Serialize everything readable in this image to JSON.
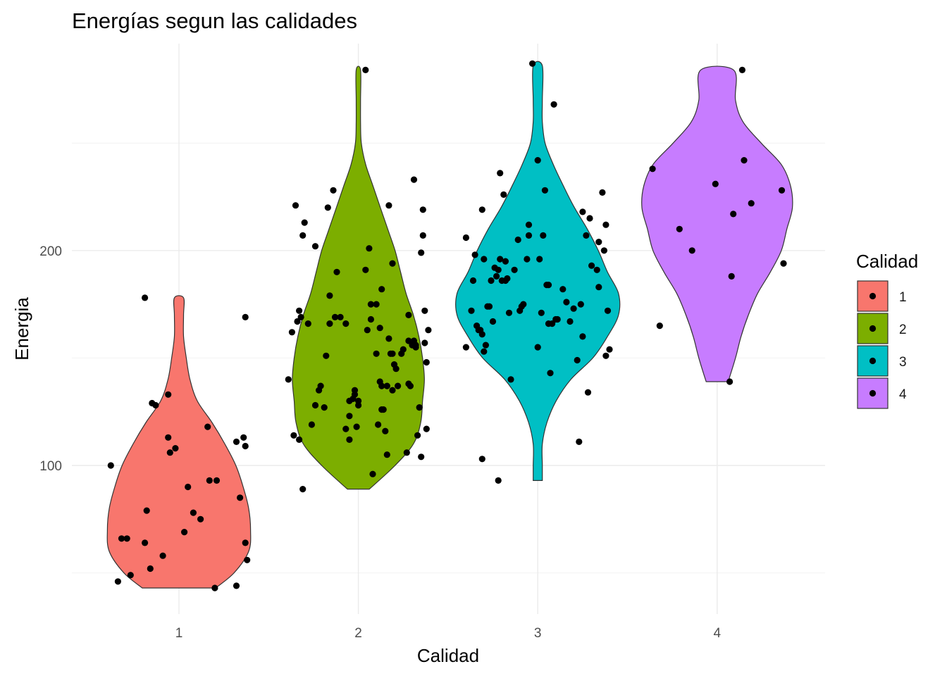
{
  "chart_data": {
    "type": "violin",
    "title": "Energías segun las calidades",
    "xlabel": "Calidad",
    "ylabel": "Energia",
    "categories": [
      "1",
      "2",
      "3",
      "4"
    ],
    "y_ticks": [
      100,
      200
    ],
    "ylim": [
      40,
      296
    ],
    "grid": true,
    "legend": {
      "title": "Calidad",
      "position": "right",
      "items": [
        {
          "label": "1",
          "color": "#F8766D"
        },
        {
          "label": "2",
          "color": "#7CAE00"
        },
        {
          "label": "3",
          "color": "#00BFC4"
        },
        {
          "label": "4",
          "color": "#C77CFF"
        }
      ]
    },
    "groups": [
      {
        "name": "1",
        "color": "#F8766D",
        "range": [
          43,
          178
        ],
        "density": [
          [
            43,
            0.2
          ],
          [
            50,
            0.3
          ],
          [
            60,
            0.38
          ],
          [
            70,
            0.39
          ],
          [
            80,
            0.38
          ],
          [
            90,
            0.35
          ],
          [
            100,
            0.31
          ],
          [
            110,
            0.25
          ],
          [
            120,
            0.18
          ],
          [
            130,
            0.1
          ],
          [
            140,
            0.06
          ],
          [
            150,
            0.04
          ],
          [
            160,
            0.025
          ],
          [
            170,
            0.025
          ],
          [
            178,
            0.025
          ]
        ],
        "points": [
          [
            0.62,
            100
          ],
          [
            0.66,
            46
          ],
          [
            0.68,
            66
          ],
          [
            0.71,
            66
          ],
          [
            0.73,
            49
          ],
          [
            0.81,
            178
          ],
          [
            0.81,
            64
          ],
          [
            0.82,
            79
          ],
          [
            0.84,
            52
          ],
          [
            0.85,
            129
          ],
          [
            0.87,
            128
          ],
          [
            0.91,
            58
          ],
          [
            0.94,
            113
          ],
          [
            0.94,
            133
          ],
          [
            0.95,
            106
          ],
          [
            0.98,
            108
          ],
          [
            1.03,
            69
          ],
          [
            1.05,
            90
          ],
          [
            1.08,
            78
          ],
          [
            1.12,
            75
          ],
          [
            1.16,
            118
          ],
          [
            1.17,
            93
          ],
          [
            1.2,
            43
          ],
          [
            1.21,
            93
          ],
          [
            1.32,
            111
          ],
          [
            1.32,
            44
          ],
          [
            1.34,
            85
          ],
          [
            1.36,
            113
          ],
          [
            1.37,
            109
          ],
          [
            1.37,
            64
          ],
          [
            1.37,
            169
          ],
          [
            1.38,
            56
          ]
        ]
      },
      {
        "name": "2",
        "color": "#7CAE00",
        "range": [
          89,
          284
        ],
        "density": [
          [
            89,
            0.06
          ],
          [
            100,
            0.2
          ],
          [
            110,
            0.3
          ],
          [
            120,
            0.34
          ],
          [
            130,
            0.35
          ],
          [
            140,
            0.36
          ],
          [
            150,
            0.35
          ],
          [
            160,
            0.33
          ],
          [
            170,
            0.3
          ],
          [
            180,
            0.26
          ],
          [
            190,
            0.23
          ],
          [
            200,
            0.2
          ],
          [
            210,
            0.16
          ],
          [
            220,
            0.12
          ],
          [
            230,
            0.08
          ],
          [
            240,
            0.04
          ],
          [
            250,
            0.016
          ],
          [
            260,
            0.012
          ],
          [
            270,
            0.012
          ],
          [
            284,
            0.012
          ]
        ],
        "points": [
          [
            1.61,
            140
          ],
          [
            1.63,
            162
          ],
          [
            1.64,
            114
          ],
          [
            1.65,
            221
          ],
          [
            1.66,
            167
          ],
          [
            1.67,
            112
          ],
          [
            1.67,
            172
          ],
          [
            1.68,
            169
          ],
          [
            1.69,
            89
          ],
          [
            1.69,
            207
          ],
          [
            1.7,
            213
          ],
          [
            1.72,
            166
          ],
          [
            1.74,
            119
          ],
          [
            1.76,
            202
          ],
          [
            1.76,
            128
          ],
          [
            1.78,
            135
          ],
          [
            1.79,
            137
          ],
          [
            1.81,
            127
          ],
          [
            1.82,
            151
          ],
          [
            1.83,
            220
          ],
          [
            1.84,
            166
          ],
          [
            1.84,
            179
          ],
          [
            1.86,
            228
          ],
          [
            1.87,
            169
          ],
          [
            1.88,
            190
          ],
          [
            1.9,
            169
          ],
          [
            1.93,
            117
          ],
          [
            1.93,
            166
          ],
          [
            1.95,
            123
          ],
          [
            1.95,
            112
          ],
          [
            1.95,
            130
          ],
          [
            1.97,
            131
          ],
          [
            1.98,
            135
          ],
          [
            1.98,
            133
          ],
          [
            1.99,
            118
          ],
          [
            2.0,
            128
          ],
          [
            2.0,
            130
          ],
          [
            2.04,
            284
          ],
          [
            2.04,
            191
          ],
          [
            2.05,
            163
          ],
          [
            2.06,
            201
          ],
          [
            2.07,
            168
          ],
          [
            2.07,
            175
          ],
          [
            2.08,
            96
          ],
          [
            2.1,
            175
          ],
          [
            2.1,
            152
          ],
          [
            2.11,
            119
          ],
          [
            2.12,
            139
          ],
          [
            2.12,
            164
          ],
          [
            2.13,
            137
          ],
          [
            2.13,
            182
          ],
          [
            2.13,
            126
          ],
          [
            2.14,
            126
          ],
          [
            2.15,
            116
          ],
          [
            2.16,
            105
          ],
          [
            2.16,
            137
          ],
          [
            2.17,
            221
          ],
          [
            2.17,
            159
          ],
          [
            2.18,
            152
          ],
          [
            2.19,
            135
          ],
          [
            2.19,
            194
          ],
          [
            2.19,
            152
          ],
          [
            2.2,
            147
          ],
          [
            2.21,
            145
          ],
          [
            2.22,
            137
          ],
          [
            2.24,
            152
          ],
          [
            2.25,
            154
          ],
          [
            2.27,
            106
          ],
          [
            2.28,
            138
          ],
          [
            2.28,
            170
          ],
          [
            2.28,
            158
          ],
          [
            2.29,
            137
          ],
          [
            2.3,
            156
          ],
          [
            2.31,
            233
          ],
          [
            2.31,
            158
          ],
          [
            2.32,
            155
          ],
          [
            2.32,
            156
          ],
          [
            2.33,
            114
          ],
          [
            2.34,
            127
          ],
          [
            2.35,
            104
          ],
          [
            2.35,
            199
          ],
          [
            2.36,
            207
          ],
          [
            2.36,
            219
          ],
          [
            2.37,
            157
          ],
          [
            2.37,
            172
          ],
          [
            2.38,
            117
          ],
          [
            2.38,
            148
          ],
          [
            2.39,
            163
          ]
        ]
      },
      {
        "name": "3",
        "color": "#00BFC4",
        "range": [
          93,
          286
        ],
        "density": [
          [
            93,
            0.025
          ],
          [
            100,
            0.025
          ],
          [
            110,
            0.025
          ],
          [
            120,
            0.05
          ],
          [
            130,
            0.1
          ],
          [
            140,
            0.18
          ],
          [
            150,
            0.3
          ],
          [
            160,
            0.38
          ],
          [
            170,
            0.44
          ],
          [
            180,
            0.44
          ],
          [
            190,
            0.38
          ],
          [
            200,
            0.33
          ],
          [
            210,
            0.27
          ],
          [
            220,
            0.2
          ],
          [
            230,
            0.14
          ],
          [
            240,
            0.085
          ],
          [
            250,
            0.04
          ],
          [
            260,
            0.025
          ],
          [
            270,
            0.025
          ],
          [
            286,
            0.025
          ]
        ],
        "points": [
          [
            2.6,
            206
          ],
          [
            2.6,
            155
          ],
          [
            2.63,
            172
          ],
          [
            2.64,
            186
          ],
          [
            2.65,
            198
          ],
          [
            2.66,
            165
          ],
          [
            2.67,
            163
          ],
          [
            2.68,
            163
          ],
          [
            2.69,
            161
          ],
          [
            2.69,
            219
          ],
          [
            2.69,
            103
          ],
          [
            2.7,
            153
          ],
          [
            2.7,
            196
          ],
          [
            2.71,
            156
          ],
          [
            2.72,
            174
          ],
          [
            2.73,
            174
          ],
          [
            2.74,
            186
          ],
          [
            2.75,
            167
          ],
          [
            2.76,
            192
          ],
          [
            2.77,
            188
          ],
          [
            2.78,
            93
          ],
          [
            2.78,
            191
          ],
          [
            2.79,
            236
          ],
          [
            2.79,
            196
          ],
          [
            2.8,
            186
          ],
          [
            2.81,
            226
          ],
          [
            2.82,
            186
          ],
          [
            2.82,
            195
          ],
          [
            2.83,
            187
          ],
          [
            2.84,
            171
          ],
          [
            2.85,
            140
          ],
          [
            2.87,
            191
          ],
          [
            2.89,
            205
          ],
          [
            2.9,
            172
          ],
          [
            2.91,
            174
          ],
          [
            2.92,
            175
          ],
          [
            2.94,
            196
          ],
          [
            2.95,
            212
          ],
          [
            2.95,
            207
          ],
          [
            2.97,
            287
          ],
          [
            3.0,
            242
          ],
          [
            3.0,
            155
          ],
          [
            3.01,
            196
          ],
          [
            3.02,
            171
          ],
          [
            3.03,
            207
          ],
          [
            3.04,
            228
          ],
          [
            3.05,
            184
          ],
          [
            3.06,
            184
          ],
          [
            3.06,
            166
          ],
          [
            3.07,
            143
          ],
          [
            3.08,
            166
          ],
          [
            3.09,
            268
          ],
          [
            3.1,
            168
          ],
          [
            3.11,
            168
          ],
          [
            3.14,
            182
          ],
          [
            3.16,
            176
          ],
          [
            3.18,
            167
          ],
          [
            3.2,
            173
          ],
          [
            3.22,
            149
          ],
          [
            3.23,
            111
          ],
          [
            3.24,
            175
          ],
          [
            3.25,
            218
          ],
          [
            3.25,
            160
          ],
          [
            3.27,
            207
          ],
          [
            3.28,
            134
          ],
          [
            3.29,
            215
          ],
          [
            3.3,
            193
          ],
          [
            3.33,
            191
          ],
          [
            3.34,
            183
          ],
          [
            3.34,
            204
          ],
          [
            3.36,
            227
          ],
          [
            3.37,
            200
          ],
          [
            3.38,
            212
          ],
          [
            3.38,
            151
          ],
          [
            3.39,
            172
          ],
          [
            3.4,
            154
          ]
        ]
      },
      {
        "name": "4",
        "color": "#C77CFF",
        "range": [
          139,
          284
        ],
        "density": [
          [
            139,
            0.06
          ],
          [
            150,
            0.1
          ],
          [
            160,
            0.13
          ],
          [
            170,
            0.17
          ],
          [
            180,
            0.22
          ],
          [
            190,
            0.29
          ],
          [
            200,
            0.35
          ],
          [
            210,
            0.38
          ],
          [
            220,
            0.41
          ],
          [
            230,
            0.4
          ],
          [
            240,
            0.35
          ],
          [
            250,
            0.24
          ],
          [
            260,
            0.14
          ],
          [
            270,
            0.1
          ],
          [
            284,
            0.09
          ]
        ],
        "points": [
          [
            3.64,
            238
          ],
          [
            3.68,
            165
          ],
          [
            3.79,
            210
          ],
          [
            3.86,
            200
          ],
          [
            3.99,
            231
          ],
          [
            4.07,
            139
          ],
          [
            4.08,
            188
          ],
          [
            4.09,
            217
          ],
          [
            4.14,
            284
          ],
          [
            4.15,
            242
          ],
          [
            4.19,
            222
          ],
          [
            4.36,
            228
          ],
          [
            4.37,
            194
          ]
        ]
      }
    ]
  }
}
